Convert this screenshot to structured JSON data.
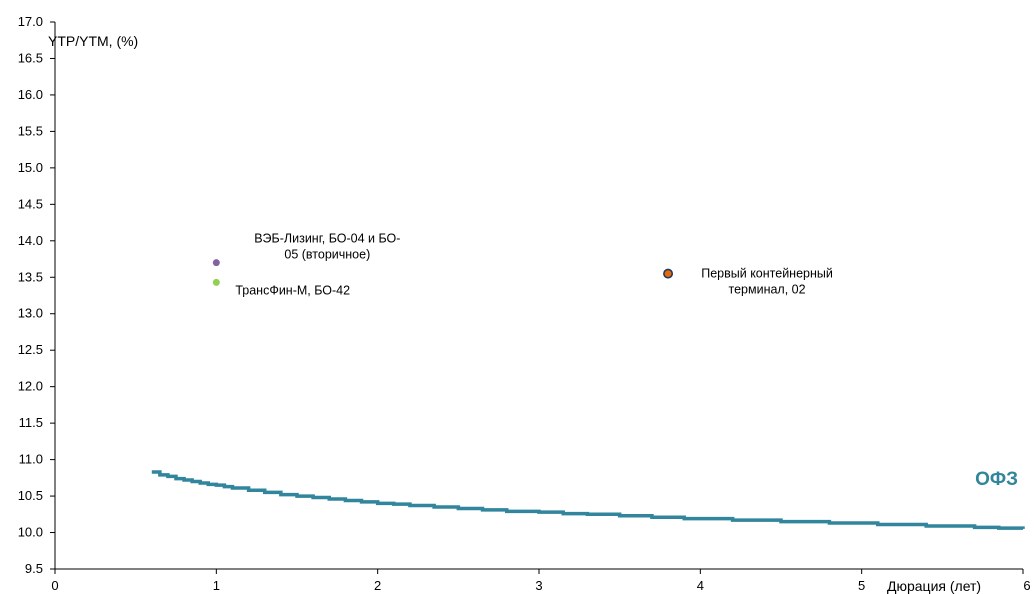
{
  "chart_data": {
    "type": "scatter",
    "ylabel": "YTP/YTM, (%)",
    "xlabel": "Дюрация (лет)",
    "xlim": [
      0,
      6
    ],
    "ylim": [
      9.5,
      17.0
    ],
    "x_ticks": [
      "0",
      "1",
      "2",
      "3",
      "4",
      "5",
      "6"
    ],
    "y_ticks": [
      "9.5",
      "10.0",
      "10.5",
      "11.0",
      "11.5",
      "12.0",
      "12.5",
      "13.0",
      "13.5",
      "14.0",
      "14.5",
      "15.0",
      "15.5",
      "16.0",
      "16.5",
      "17.0"
    ],
    "grid": false,
    "points": [
      {
        "label_lines": [
          "ВЭБ-Лизинг, БО-04 и БО-",
          "05 (вторичное)"
        ],
        "x": 1.0,
        "y": 13.7,
        "color": "#8064a2"
      },
      {
        "label_lines": [
          "ТрансФин-М, БО-42"
        ],
        "x": 1.0,
        "y": 13.43,
        "color": "#92d050"
      },
      {
        "label_lines": [
          "Первый контейнерный",
          "терминал, 02"
        ],
        "x": 3.8,
        "y": 13.55,
        "color": "#e36c09",
        "outline": "#1f3864"
      }
    ],
    "series": [
      {
        "name": "ОФЗ",
        "color": "#31859c",
        "x": [
          0.6,
          0.65,
          0.7,
          0.75,
          0.8,
          0.85,
          0.9,
          0.95,
          1.0,
          1.05,
          1.1,
          1.2,
          1.3,
          1.4,
          1.5,
          1.6,
          1.7,
          1.8,
          1.9,
          2.0,
          2.1,
          2.2,
          2.35,
          2.5,
          2.65,
          2.8,
          3.0,
          3.15,
          3.3,
          3.5,
          3.7,
          3.9,
          4.2,
          4.5,
          4.8,
          5.1,
          5.4,
          5.7,
          5.85,
          6.0
        ],
        "y": [
          10.83,
          10.79,
          10.77,
          10.74,
          10.72,
          10.7,
          10.68,
          10.66,
          10.65,
          10.63,
          10.61,
          10.58,
          10.55,
          10.52,
          10.5,
          10.48,
          10.46,
          10.44,
          10.42,
          10.4,
          10.39,
          10.37,
          10.35,
          10.33,
          10.31,
          10.29,
          10.28,
          10.26,
          10.25,
          10.23,
          10.21,
          10.19,
          10.17,
          10.15,
          10.13,
          10.11,
          10.09,
          10.07,
          10.06,
          10.05
        ]
      }
    ]
  }
}
